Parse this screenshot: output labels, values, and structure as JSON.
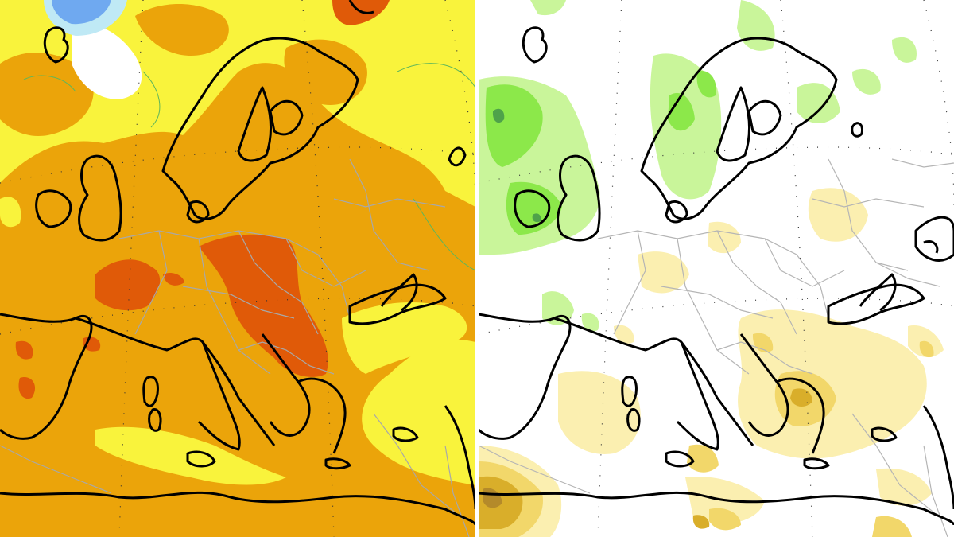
{
  "panels": [
    {
      "name": "temperature-anomaly-map",
      "palette": {
        "background": "#f9f33c",
        "anomaly_moderate": "#eba40a",
        "anomaly_high": "#e05a08",
        "anomaly_very_high": "#d94d0c",
        "cold_light": "#bfe9f5",
        "cold": "#6fa9f0",
        "neutral": "#ffffff",
        "coastline": "#000000",
        "borders": "#a8a8a8",
        "contour": "#5fb65a"
      }
    },
    {
      "name": "precipitation-anomaly-map",
      "palette": {
        "background": "#ffffff",
        "wet_light": "#c9f59a",
        "wet": "#8ce84a",
        "wet_strong": "#4fa24a",
        "dry_light": "#fbefb0",
        "dry": "#f2d76a",
        "dry_strong": "#d9ae2a",
        "dry_very_strong": "#b48a2a",
        "coastline": "#000000",
        "borders": "#b5b5b5"
      }
    }
  ]
}
